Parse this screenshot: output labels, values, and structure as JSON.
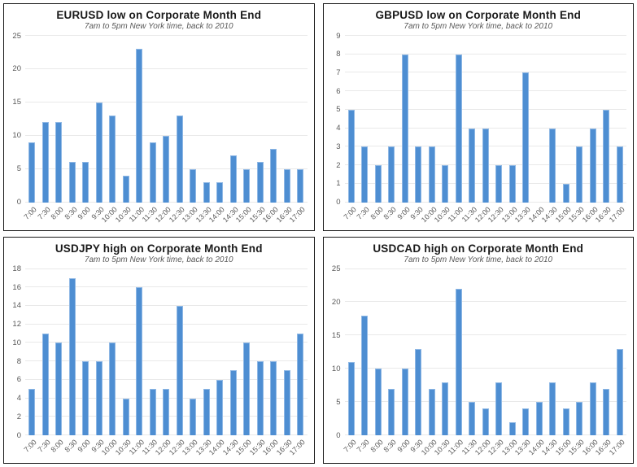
{
  "page": {
    "background": "#ffffff"
  },
  "style": {
    "bar_fill": "#4e8ed2",
    "bar_border": "#8fb8e5",
    "gridline_color": "#e9e9e9",
    "tick_text_color": "#595959",
    "title_color": "#1a1a1a",
    "panel_border_color": "#1a1a1a"
  },
  "chart_data": [
    {
      "type": "bar",
      "title": "EURUSD low on Corporate Month End",
      "subtitle": "7am to 5pm New York time, back to 2010",
      "xlabel": "",
      "ylabel": "",
      "ylim": [
        0,
        25
      ],
      "y_step": 5,
      "y_ticks": [
        0,
        5,
        10,
        15,
        20,
        25
      ],
      "grid": "horizontal",
      "legend": "none",
      "categories": [
        "7:00",
        "7:30",
        "8:00",
        "8:30",
        "9:00",
        "9:30",
        "10:00",
        "10:30",
        "11:00",
        "11:30",
        "12:00",
        "12:30",
        "13:00",
        "13:30",
        "14:00",
        "14:30",
        "15:00",
        "15:30",
        "16:00",
        "16:30",
        "17:00"
      ],
      "values": [
        9,
        12,
        12,
        6,
        6,
        15,
        13,
        4,
        23,
        9,
        10,
        13,
        5,
        3,
        3,
        7,
        5,
        6,
        8,
        5,
        5
      ]
    },
    {
      "type": "bar",
      "title": "GBPUSD low on Corporate Month End",
      "subtitle": "7am to 5pm New York time, back to 2010",
      "xlabel": "",
      "ylabel": "",
      "ylim": [
        0,
        9
      ],
      "y_step": 1,
      "y_ticks": [
        0,
        1,
        2,
        3,
        4,
        5,
        6,
        7,
        8,
        9
      ],
      "grid": "horizontal",
      "legend": "none",
      "categories": [
        "7:00",
        "7:30",
        "8:00",
        "8:30",
        "9:00",
        "9:30",
        "10:00",
        "10:30",
        "11:00",
        "11:30",
        "12:00",
        "12:30",
        "13:00",
        "13:30",
        "14:00",
        "14:30",
        "15:00",
        "15:30",
        "16:00",
        "16:30",
        "17:00"
      ],
      "values": [
        5,
        3,
        2,
        3,
        8,
        3,
        3,
        2,
        8,
        4,
        4,
        2,
        2,
        7,
        0,
        4,
        1,
        3,
        4,
        5,
        3
      ]
    },
    {
      "type": "bar",
      "title": "USDJPY high on Corporate Month End",
      "subtitle": "7am to 5pm New York time, back to 2010",
      "xlabel": "",
      "ylabel": "",
      "ylim": [
        0,
        18
      ],
      "y_step": 2,
      "y_ticks": [
        0,
        2,
        4,
        6,
        8,
        10,
        12,
        14,
        16,
        18
      ],
      "grid": "horizontal",
      "legend": "none",
      "categories": [
        "7:00",
        "7:30",
        "8:00",
        "8:30",
        "9:00",
        "9:30",
        "10:00",
        "10:30",
        "11:00",
        "11:30",
        "12:00",
        "12:30",
        "13:00",
        "13:30",
        "14:00",
        "14:30",
        "15:00",
        "15:30",
        "16:00",
        "16:30",
        "17:00"
      ],
      "values": [
        5,
        11,
        10,
        17,
        8,
        8,
        10,
        4,
        16,
        5,
        5,
        14,
        4,
        5,
        6,
        7,
        10,
        8,
        8,
        7,
        11
      ]
    },
    {
      "type": "bar",
      "title": "USDCAD high on Corporate Month End",
      "subtitle": "7am to 5pm New York time, back to 2010",
      "xlabel": "",
      "ylabel": "",
      "ylim": [
        0,
        25
      ],
      "y_step": 5,
      "y_ticks": [
        0,
        5,
        10,
        15,
        20,
        25
      ],
      "grid": "horizontal",
      "legend": "none",
      "categories": [
        "7:00",
        "7:30",
        "8:00",
        "8:30",
        "9:00",
        "9:30",
        "10:00",
        "10:30",
        "11:00",
        "11:30",
        "12:00",
        "12:30",
        "13:00",
        "13:30",
        "14:00",
        "14:30",
        "15:00",
        "15:30",
        "16:00",
        "16:30",
        "17:00"
      ],
      "values": [
        11,
        18,
        10,
        7,
        10,
        13,
        7,
        8,
        22,
        5,
        4,
        8,
        2,
        4,
        5,
        8,
        4,
        5,
        8,
        7,
        13
      ]
    }
  ]
}
